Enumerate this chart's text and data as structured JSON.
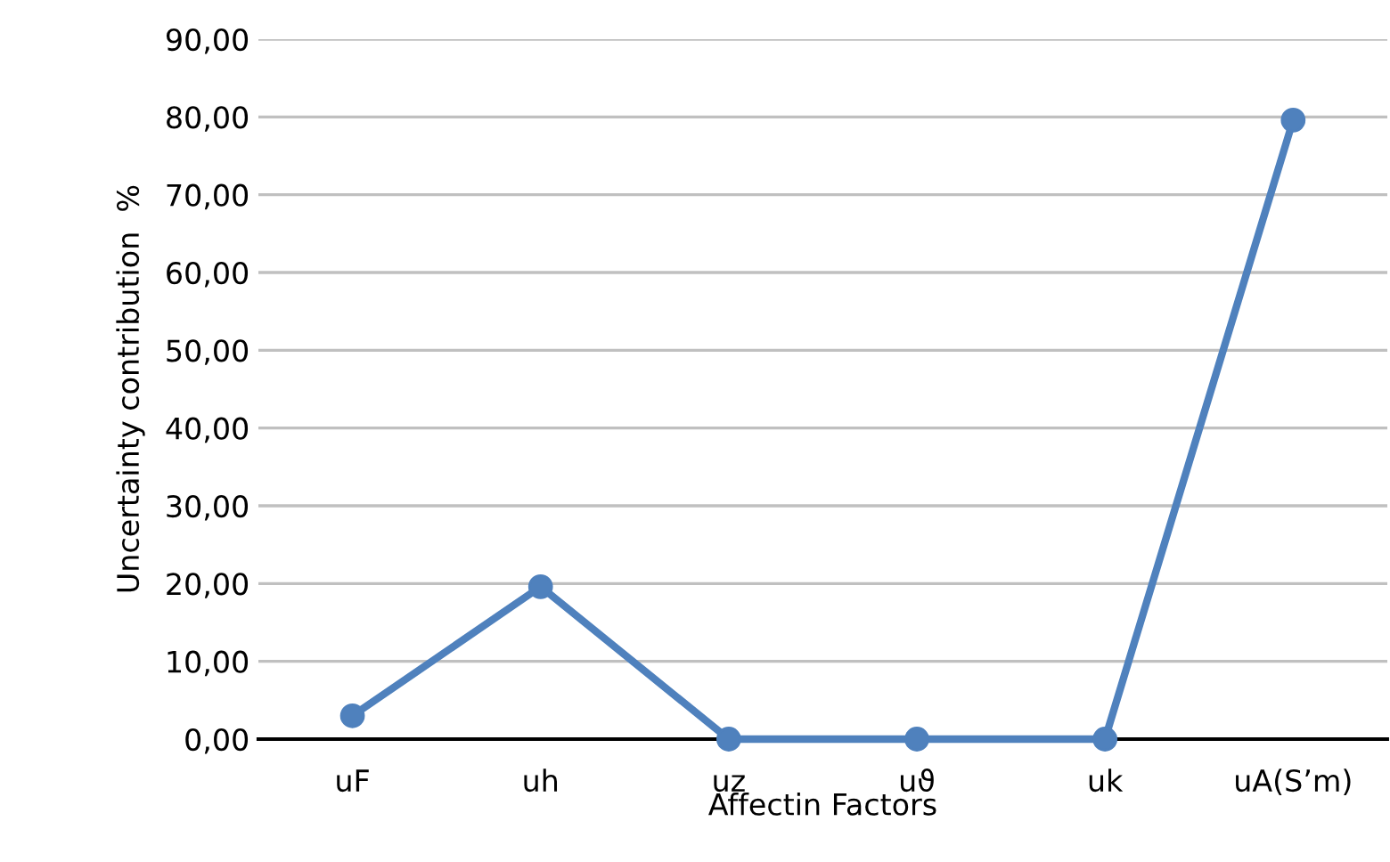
{
  "chart_data": {
    "type": "line",
    "xlabel": "Affectin Factors",
    "ylabel": "Uncertainty contribution  %",
    "categories": [
      "uF",
      "uh",
      "uz",
      "uϑ",
      "uk",
      "uA(S’m)"
    ],
    "series": [
      {
        "color": "#4f81bd",
        "values": [
          3.0,
          19.6,
          0.0,
          0.0,
          0.0,
          79.6
        ]
      }
    ],
    "ylim": [
      0,
      90
    ],
    "yticks": [
      {
        "value": 0,
        "label": "0,00"
      },
      {
        "value": 10,
        "label": "10,00"
      },
      {
        "value": 20,
        "label": "20,00"
      },
      {
        "value": 30,
        "label": "30,00"
      },
      {
        "value": 40,
        "label": "40,00"
      },
      {
        "value": 50,
        "label": "50,00"
      },
      {
        "value": 60,
        "label": "60,00"
      },
      {
        "value": 70,
        "label": "70,00"
      },
      {
        "value": 80,
        "label": "80,00"
      },
      {
        "value": 90,
        "label": "90,00"
      }
    ],
    "grid": "y",
    "marker": "circle",
    "line_style": "solid"
  }
}
